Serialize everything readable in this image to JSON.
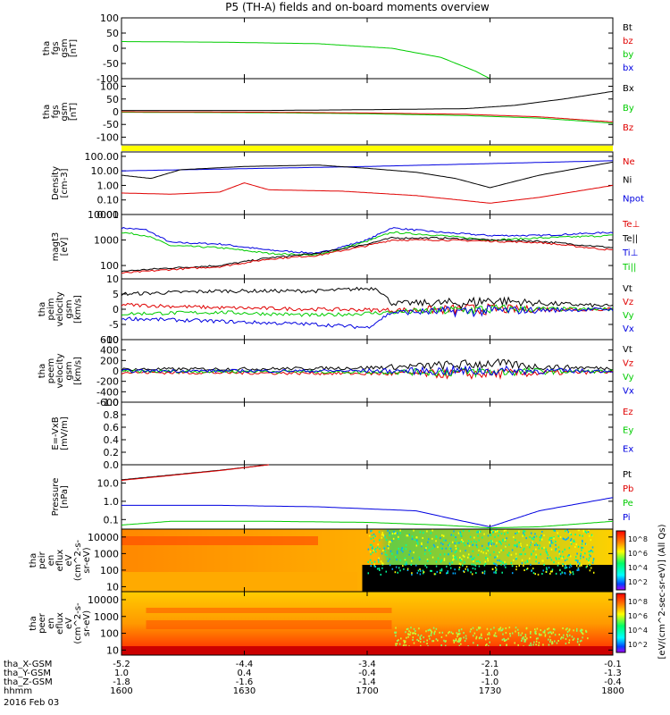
{
  "title": "P5 (TH-A) fields and on-board moments overview",
  "date_label": "2016 Feb 03",
  "colors": {
    "black": "#000000",
    "red": "#e00000",
    "green": "#00cc00",
    "blue": "#0000e0",
    "yellow": "#ffff00"
  },
  "footer": {
    "rows": [
      {
        "label": "tha_X-GSM",
        "values": [
          "-5.2",
          "-4.4",
          "-3.4",
          "-2.1",
          "-0.1"
        ]
      },
      {
        "label": "tha_Y-GSM",
        "values": [
          "1.0",
          "0.4",
          "-0.4",
          "-1.0",
          "-1.3"
        ]
      },
      {
        "label": "tha_Z-GSM",
        "values": [
          "-1.8",
          "-1.6",
          "-1.4",
          "-1.0",
          "-0.4"
        ]
      },
      {
        "label": "hhmm",
        "values": [
          "1600",
          "1630",
          "1700",
          "1730",
          "1800"
        ]
      }
    ]
  },
  "colorbar": {
    "label": "[eV/(cm^2-sec-sr-eV)] (All Qs)",
    "ticks_upper": [
      "10^8",
      "10^6",
      "10^4",
      "10^2"
    ],
    "ticks_lower": [
      "10^8",
      "10^6",
      "10^4",
      "10^2"
    ]
  },
  "chart_data": {
    "type": "line",
    "x_ticks": [
      "1600",
      "1630",
      "1700",
      "1730",
      "1800"
    ],
    "panels": [
      {
        "id": "fgs_dsl",
        "ylabel": [
          "tha",
          "fgs",
          "gsm",
          "[nT]"
        ],
        "scale": "linear",
        "ylim": [
          -100,
          100
        ],
        "ticks": [
          "100",
          "50",
          "0",
          "-50",
          "-100"
        ],
        "legend": [
          {
            "name": "Bt",
            "color": "black"
          },
          {
            "name": "bz",
            "color": "red"
          },
          {
            "name": "by",
            "color": "green"
          },
          {
            "name": "bx",
            "color": "blue"
          }
        ],
        "series": [
          {
            "name": "by",
            "color": "green",
            "x": [
              0,
              0.2,
              0.4,
              0.55,
              0.65,
              0.72,
              0.75
            ],
            "y": [
              22,
              20,
              15,
              0,
              -30,
              -75,
              -100
            ]
          }
        ]
      },
      {
        "id": "fgs_gsm",
        "ylabel": [
          "tha",
          "fgs",
          "gsm",
          "[nT]"
        ],
        "scale": "linear",
        "ylim": [
          -130,
          130
        ],
        "ticks": [
          "100",
          "50",
          "0",
          "-50",
          "-100"
        ],
        "legend": [
          {
            "name": "Bx",
            "color": "black"
          },
          {
            "name": "By",
            "color": "green"
          },
          {
            "name": "Bz",
            "color": "red"
          }
        ],
        "series": [
          {
            "name": "Bx",
            "color": "black",
            "x": [
              0,
              0.3,
              0.5,
              0.7,
              0.8,
              0.9,
              1.0
            ],
            "y": [
              5,
              5,
              8,
              12,
              25,
              50,
              80
            ]
          },
          {
            "name": "By",
            "color": "green",
            "x": [
              0,
              0.3,
              0.5,
              0.7,
              0.85,
              1.0
            ],
            "y": [
              -2,
              -4,
              -8,
              -15,
              -25,
              -45
            ]
          },
          {
            "name": "Bz",
            "color": "red",
            "x": [
              0,
              0.3,
              0.5,
              0.7,
              0.85,
              1.0
            ],
            "y": [
              0,
              -2,
              -5,
              -10,
              -20,
              -40
            ]
          }
        ]
      },
      {
        "id": "density",
        "ylabel": [
          "Density",
          "[cm-3]"
        ],
        "scale": "log",
        "ylim": [
          0.01,
          200
        ],
        "ticks": [
          "100.00",
          "10.00",
          "1.00",
          "0.10",
          "0.01"
        ],
        "legend": [
          {
            "name": "Ne",
            "color": "red"
          },
          {
            "name": "Ni",
            "color": "black"
          },
          {
            "name": "Npot",
            "color": "blue"
          }
        ],
        "series": [
          {
            "name": "Npot",
            "color": "blue",
            "x": [
              0,
              0.5,
              1.0
            ],
            "y": [
              10,
              20,
              50
            ]
          },
          {
            "name": "Ni",
            "color": "black",
            "x": [
              0,
              0.06,
              0.12,
              0.25,
              0.4,
              0.5,
              0.6,
              0.68,
              0.75,
              0.85,
              1.0
            ],
            "y": [
              5,
              3,
              12,
              20,
              25,
              15,
              8,
              3,
              0.7,
              5,
              40
            ]
          },
          {
            "name": "Ne",
            "color": "red",
            "x": [
              0,
              0.1,
              0.2,
              0.25,
              0.3,
              0.45,
              0.6,
              0.75,
              0.85,
              1.0
            ],
            "y": [
              0.3,
              0.25,
              0.35,
              1.5,
              0.5,
              0.4,
              0.2,
              0.06,
              0.15,
              1.0
            ]
          }
        ]
      },
      {
        "id": "temperature",
        "ylabel": [
          "magt3",
          "[eV]"
        ],
        "scale": "log",
        "ylim": [
          30,
          10000
        ],
        "ticks": [
          "10000",
          "1000",
          "100"
        ],
        "legend": [
          {
            "name": "Te⊥",
            "color": "red"
          },
          {
            "name": "Te||",
            "color": "black"
          },
          {
            "name": "Ti⊥",
            "color": "blue"
          },
          {
            "name": "Ti||",
            "color": "green"
          }
        ],
        "series": [
          {
            "name": "Ti⊥",
            "color": "blue",
            "x": [
              0,
              0.05,
              0.1,
              0.2,
              0.3,
              0.4,
              0.5,
              0.55,
              0.65,
              0.75,
              0.85,
              1.0
            ],
            "y": [
              3000,
              2500,
              800,
              700,
              400,
              300,
              1000,
              3000,
              2000,
              1500,
              1500,
              2000
            ]
          },
          {
            "name": "Ti||",
            "color": "green",
            "x": [
              0,
              0.05,
              0.1,
              0.2,
              0.3,
              0.4,
              0.5,
              0.55,
              0.65,
              0.75,
              0.85,
              1.0
            ],
            "y": [
              2000,
              1500,
              600,
              500,
              300,
              250,
              900,
              2000,
              1500,
              1000,
              1200,
              1500
            ]
          },
          {
            "name": "Te||",
            "color": "black",
            "x": [
              0,
              0.1,
              0.2,
              0.3,
              0.4,
              0.5,
              0.55,
              0.65,
              0.75,
              0.85,
              1.0
            ],
            "y": [
              60,
              80,
              100,
              200,
              300,
              700,
              1200,
              1200,
              1000,
              900,
              500
            ]
          },
          {
            "name": "Te⊥",
            "color": "red",
            "x": [
              0,
              0.1,
              0.2,
              0.3,
              0.4,
              0.5,
              0.55,
              0.65,
              0.75,
              0.85,
              1.0
            ],
            "y": [
              50,
              70,
              90,
              180,
              250,
              600,
              1000,
              1000,
              900,
              800,
              400
            ]
          }
        ]
      },
      {
        "id": "velocity_peim",
        "ylabel": [
          "tha",
          "peim",
          "velocity",
          "gsm",
          "[km/s]"
        ],
        "scale": "linear",
        "ylim": [
          -10,
          10
        ],
        "ticks": [
          "10",
          "5",
          "0",
          "-5",
          "-10"
        ],
        "legend": [
          {
            "name": "Vt",
            "color": "black"
          },
          {
            "name": "Vz",
            "color": "red"
          },
          {
            "name": "Vy",
            "color": "green"
          },
          {
            "name": "Vx",
            "color": "blue"
          }
        ],
        "series": [
          {
            "name": "Vt",
            "color": "black",
            "x": [
              0,
              0.2,
              0.4,
              0.52,
              0.55,
              0.7,
              0.75,
              0.85,
              1.0
            ],
            "y": [
              5,
              6,
              6,
              7,
              2,
              2,
              3,
              2,
              1
            ]
          },
          {
            "name": "Vz",
            "color": "red",
            "x": [
              0,
              0.2,
              0.4,
              0.55,
              0.75,
              1.0
            ],
            "y": [
              1.5,
              0.5,
              0,
              -0.3,
              0,
              0
            ]
          },
          {
            "name": "Vy",
            "color": "green",
            "x": [
              0,
              0.2,
              0.4,
              0.55,
              0.75,
              1.0
            ],
            "y": [
              -1.5,
              -1,
              -2,
              -1,
              0,
              0
            ]
          },
          {
            "name": "Vx",
            "color": "blue",
            "x": [
              0,
              0.2,
              0.4,
              0.5,
              0.55,
              0.75,
              1.0
            ],
            "y": [
              -3,
              -4,
              -5,
              -6,
              -1,
              -0.5,
              0
            ]
          }
        ]
      },
      {
        "id": "velocity_peem",
        "ylabel": [
          "tha",
          "peem",
          "velocity",
          "gsm",
          "[km/s]"
        ],
        "scale": "linear",
        "ylim": [
          -600,
          600
        ],
        "ticks": [
          "600",
          "400",
          "200",
          "0",
          "-200",
          "-400",
          "-600"
        ],
        "legend": [
          {
            "name": "Vt",
            "color": "black"
          },
          {
            "name": "Vz",
            "color": "red"
          },
          {
            "name": "Vy",
            "color": "green"
          },
          {
            "name": "Vx",
            "color": "blue"
          }
        ],
        "series": [
          {
            "name": "Vt",
            "color": "black",
            "x": [
              0,
              0.3,
              0.5,
              0.7,
              0.75,
              0.85,
              1.0
            ],
            "y": [
              30,
              40,
              60,
              120,
              150,
              80,
              50
            ]
          },
          {
            "name": "Vz",
            "color": "red",
            "x": [
              0,
              0.3,
              0.5,
              0.7,
              0.85,
              1.0
            ],
            "y": [
              -30,
              -40,
              -50,
              -60,
              -40,
              -20
            ]
          },
          {
            "name": "Vy",
            "color": "green",
            "x": [
              0,
              0.3,
              0.5,
              0.7,
              0.85,
              1.0
            ],
            "y": [
              -10,
              -10,
              -20,
              -20,
              -10,
              -10
            ]
          },
          {
            "name": "Vx",
            "color": "blue",
            "x": [
              0,
              0.3,
              0.5,
              0.7,
              0.85,
              1.0
            ],
            "y": [
              0,
              0,
              0,
              0,
              0,
              0
            ]
          }
        ]
      },
      {
        "id": "efield",
        "ylabel": [
          "E=-VxB",
          "[mV/m]"
        ],
        "scale": "linear",
        "ylim": [
          0,
          1
        ],
        "ticks": [
          "1.0",
          "0.8",
          "0.6",
          "0.4",
          "0.2",
          "0.0"
        ],
        "legend": [
          {
            "name": "Ez",
            "color": "red"
          },
          {
            "name": "Ey",
            "color": "green"
          },
          {
            "name": "Ex",
            "color": "blue"
          }
        ],
        "series": []
      },
      {
        "id": "pressure",
        "ylabel": [
          "Pressure",
          "[nPa]"
        ],
        "scale": "log",
        "ylim": [
          0.03,
          100
        ],
        "ticks": [
          "10.0",
          "1.0",
          "0.1"
        ],
        "legend": [
          {
            "name": "Pt",
            "color": "black"
          },
          {
            "name": "Pb",
            "color": "red"
          },
          {
            "name": "Pe",
            "color": "green"
          },
          {
            "name": "Pi",
            "color": "blue"
          }
        ],
        "series": [
          {
            "name": "Pt",
            "color": "black",
            "x": [
              0,
              0.2,
              0.3
            ],
            "y": [
              15,
              50,
              100
            ]
          },
          {
            "name": "Pb",
            "color": "red",
            "x": [
              0,
              0.2,
              0.3
            ],
            "y": [
              14,
              48,
              100
            ]
          },
          {
            "name": "Pi",
            "color": "blue",
            "x": [
              0,
              0.2,
              0.4,
              0.6,
              0.68,
              0.75,
              0.85,
              1.0
            ],
            "y": [
              0.6,
              0.6,
              0.5,
              0.3,
              0.1,
              0.04,
              0.3,
              1.6
            ]
          },
          {
            "name": "Pe",
            "color": "green",
            "x": [
              0,
              0.1,
              0.3,
              0.5,
              0.65,
              0.75,
              0.85,
              1.0
            ],
            "y": [
              0.05,
              0.08,
              0.08,
              0.07,
              0.05,
              0.035,
              0.04,
              0.08
            ]
          }
        ]
      },
      {
        "id": "peir_spec",
        "ylabel": [
          "tha",
          "peir",
          "en",
          "eflux",
          "eV",
          "(cm^2-s-",
          "sr-eV)"
        ],
        "type": "spectrogram",
        "scale": "log",
        "ylim": [
          5,
          30000
        ],
        "ticks": [
          "10000",
          "1000",
          "100",
          "10"
        ]
      },
      {
        "id": "peer_spec",
        "ylabel": [
          "tha",
          "peer",
          "en",
          "eflux",
          "eV",
          "(cm^2-s-",
          "sr-eV)"
        ],
        "type": "spectrogram",
        "scale": "log",
        "ylim": [
          5,
          30000
        ],
        "ticks": [
          "10000",
          "1000",
          "100",
          "10"
        ]
      }
    ]
  }
}
